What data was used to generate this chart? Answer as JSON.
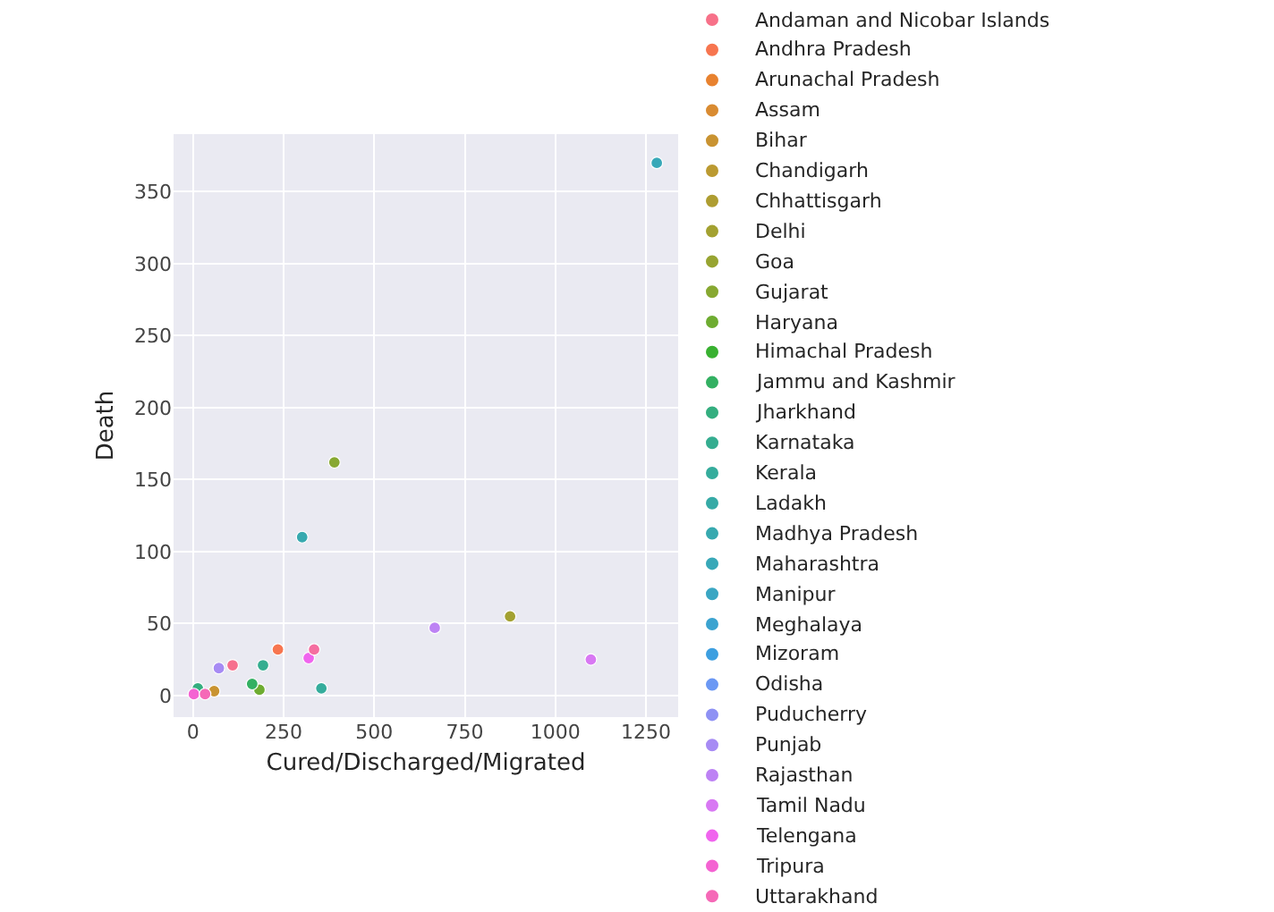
{
  "chart_data": {
    "type": "scatter",
    "xlabel": "Cured/Discharged/Migrated",
    "ylabel": "Death",
    "xlim": [
      -54,
      1339
    ],
    "ylim": [
      -15,
      390
    ],
    "xticks": [
      0,
      250,
      500,
      750,
      1000,
      1250
    ],
    "yticks": [
      0,
      50,
      100,
      150,
      200,
      250,
      300,
      350
    ],
    "grid": true,
    "legend": "right",
    "marker": "circle",
    "series": [
      {
        "name": "Andaman and Nicobar Islands",
        "color": "#f77189",
        "x": [
          null
        ],
        "values": [
          null
        ]
      },
      {
        "name": "Andhra Pradesh",
        "color": "#f7754f",
        "x": [
          234
        ],
        "values": [
          32
        ]
      },
      {
        "name": "Arunachal Pradesh",
        "color": "#e8822f",
        "x": [
          null
        ],
        "values": [
          null
        ]
      },
      {
        "name": "Assam",
        "color": "#d98b31",
        "x": [
          null
        ],
        "values": [
          null
        ]
      },
      {
        "name": "Bihar",
        "color": "#c99331",
        "x": [
          58
        ],
        "values": [
          3
        ]
      },
      {
        "name": "Chandigarh",
        "color": "#bb9a31",
        "x": [
          null
        ],
        "values": [
          null
        ]
      },
      {
        "name": "Chhattisgarh",
        "color": "#ae9d31",
        "x": [
          null
        ],
        "values": [
          null
        ]
      },
      {
        "name": "Delhi",
        "color": "#a3a131",
        "x": [
          875
        ],
        "values": [
          55
        ]
      },
      {
        "name": "Goa",
        "color": "#97a431",
        "x": [
          null
        ],
        "values": [
          null
        ]
      },
      {
        "name": "Gujarat",
        "color": "#87a831",
        "x": [
          390
        ],
        "values": [
          162
        ]
      },
      {
        "name": "Haryana",
        "color": "#6eac31",
        "x": [
          183
        ],
        "values": [
          4
        ]
      },
      {
        "name": "Himachal Pradesh",
        "color": "#39b131",
        "x": [
          null
        ],
        "values": [
          null
        ]
      },
      {
        "name": "Jammu and Kashmir",
        "color": "#33b062",
        "x": [
          163
        ],
        "values": [
          8
        ]
      },
      {
        "name": "Jharkhand",
        "color": "#34ae7f",
        "x": [
          13
        ],
        "values": [
          5
        ]
      },
      {
        "name": "Karnataka",
        "color": "#35ad90",
        "x": [
          193
        ],
        "values": [
          21
        ]
      },
      {
        "name": "Kerala",
        "color": "#35ac9c",
        "x": [
          354
        ],
        "values": [
          5
        ]
      },
      {
        "name": "Ladakh",
        "color": "#36aaa6",
        "x": [
          null
        ],
        "values": [
          null
        ]
      },
      {
        "name": "Madhya Pradesh",
        "color": "#37a9af",
        "x": [
          301
        ],
        "values": [
          110
        ]
      },
      {
        "name": "Maharashtra",
        "color": "#38a8b8",
        "x": [
          1280
        ],
        "values": [
          370
        ]
      },
      {
        "name": "Manipur",
        "color": "#3aa6c3",
        "x": [
          null
        ],
        "values": [
          null
        ]
      },
      {
        "name": "Meghalaya",
        "color": "#3ba3d0",
        "x": [
          null
        ],
        "values": [
          null
        ]
      },
      {
        "name": "Mizoram",
        "color": "#3d9fe0",
        "x": [
          null
        ],
        "values": [
          null
        ]
      },
      {
        "name": "Odisha",
        "color": "#6b98f4",
        "x": [
          null
        ],
        "values": [
          null
        ]
      },
      {
        "name": "Puducherry",
        "color": "#8e91f4",
        "x": [
          null
        ],
        "values": [
          null
        ]
      },
      {
        "name": "Punjab",
        "color": "#a78bf4",
        "x": [
          71
        ],
        "values": [
          19
        ]
      },
      {
        "name": "Rajasthan",
        "color": "#bd82f4",
        "x": [
          667
        ],
        "values": [
          47
        ]
      },
      {
        "name": "Tamil Nadu",
        "color": "#d878f3",
        "x": [
          1098
        ],
        "values": [
          25
        ]
      },
      {
        "name": "Telengana",
        "color": "#f065ee",
        "x": [
          319
        ],
        "values": [
          26
        ]
      },
      {
        "name": "Tripura",
        "color": "#f463d2",
        "x": [
          2
        ],
        "values": [
          1
        ]
      },
      {
        "name": "Uttarakhand",
        "color": "#f569b7",
        "x": [
          33
        ],
        "values": [
          1
        ]
      },
      {
        "color": "#f56ea0",
        "x": [
          334
        ],
        "values": [
          32
        ]
      },
      {
        "color": "#f6708e",
        "x": [
          109
        ],
        "values": [
          21
        ]
      }
    ]
  }
}
